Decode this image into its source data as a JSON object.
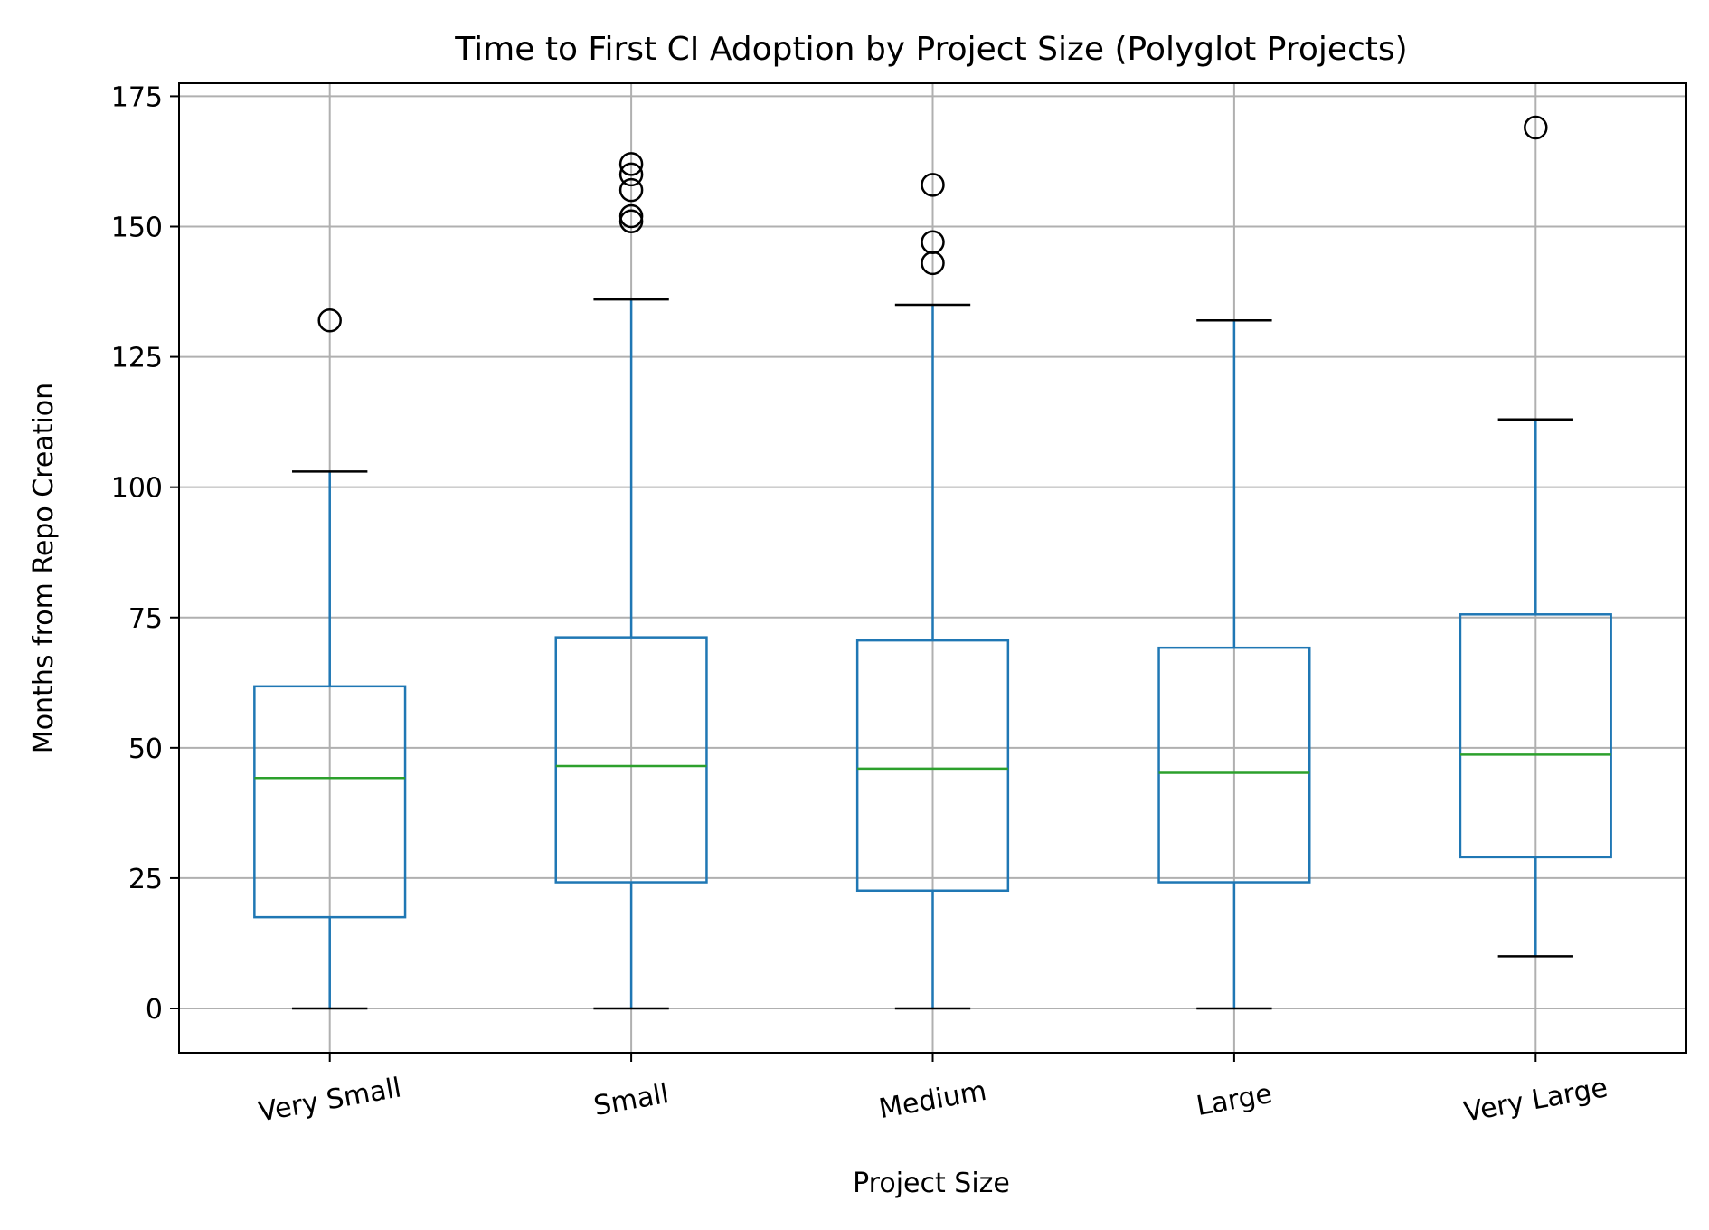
{
  "chart_data": {
    "type": "box",
    "title": "Time to First CI Adoption by Project Size (Polyglot Projects)",
    "xlabel": "Project Size",
    "ylabel": "Months from Repo Creation",
    "ylim": [
      -8.5,
      177.5
    ],
    "yticks": [
      0,
      25,
      50,
      75,
      100,
      125,
      150,
      175
    ],
    "grid": true,
    "categories": [
      "Very Small",
      "Small",
      "Medium",
      "Large",
      "Very Large"
    ],
    "boxes": [
      {
        "category": "Very Small",
        "whisker_low": 0,
        "q1": 17.5,
        "median": 44.2,
        "q3": 61.8,
        "whisker_high": 103,
        "outliers": [
          132
        ]
      },
      {
        "category": "Small",
        "whisker_low": 0,
        "q1": 24.2,
        "median": 46.5,
        "q3": 71.2,
        "whisker_high": 136,
        "outliers": [
          151,
          152,
          157,
          160,
          162
        ]
      },
      {
        "category": "Medium",
        "whisker_low": 0,
        "q1": 22.6,
        "median": 46,
        "q3": 70.6,
        "whisker_high": 135,
        "outliers": [
          143,
          147,
          158
        ]
      },
      {
        "category": "Large",
        "whisker_low": 0,
        "q1": 24.2,
        "median": 45.2,
        "q3": 69.2,
        "whisker_high": 132,
        "outliers": []
      },
      {
        "category": "Very Large",
        "whisker_low": 10,
        "q1": 29,
        "median": 48.7,
        "q3": 75.6,
        "whisker_high": 113,
        "outliers": [
          169
        ]
      }
    ],
    "colors": {
      "box": "#1f77b4",
      "median": "#2ca02c",
      "whisker_cap": "#000000",
      "grid": "#b0b0b0"
    }
  }
}
